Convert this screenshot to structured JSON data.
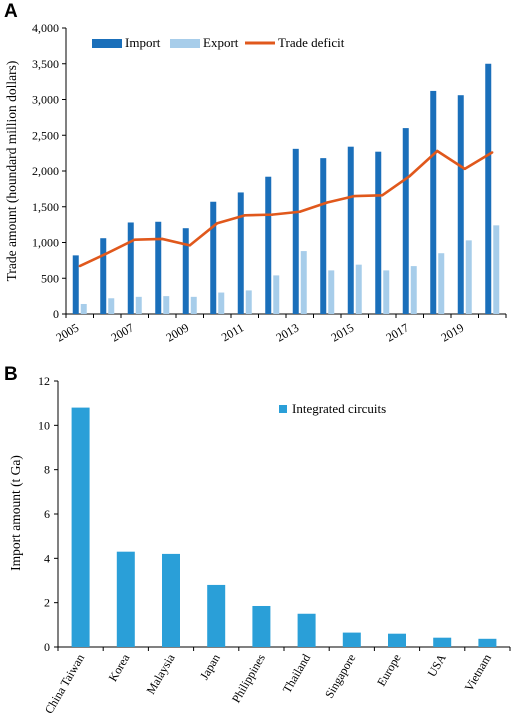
{
  "colors": {
    "import": "#1a6fba",
    "export": "#a7cdea",
    "deficit": "#e0581c",
    "ic": "#2a9fd8",
    "axis": "#000000"
  },
  "chart_data": [
    {
      "panel": "A",
      "type": "bar",
      "ylabel": "Trade amount (houndard million dollars)",
      "xlabel": "",
      "ylim": [
        0,
        4000
      ],
      "yticks": [
        0,
        500,
        1000,
        1500,
        2000,
        2500,
        3000,
        3500,
        4000
      ],
      "ytick_labels": [
        "0",
        "500",
        "1,000",
        "1,500",
        "2,000",
        "2,500",
        "3,000",
        "3,500",
        "4,000"
      ],
      "x": [
        2005,
        2006,
        2007,
        2008,
        2009,
        2010,
        2011,
        2012,
        2013,
        2014,
        2015,
        2016,
        2017,
        2018,
        2019,
        2020
      ],
      "xtick_labels": [
        "2005",
        "2007",
        "2009",
        "2011",
        "2013",
        "2015",
        "2017",
        "2019"
      ],
      "legend_position": "top",
      "grid": false,
      "series": [
        {
          "name": "Import",
          "kind": "bar",
          "values": [
            820,
            1060,
            1280,
            1290,
            1200,
            1570,
            1700,
            1920,
            2310,
            2180,
            2340,
            2270,
            2600,
            3120,
            3060,
            3500
          ]
        },
        {
          "name": "Export",
          "kind": "bar",
          "values": [
            140,
            220,
            240,
            250,
            240,
            300,
            330,
            540,
            880,
            610,
            690,
            610,
            670,
            850,
            1030,
            1240
          ]
        },
        {
          "name": "Trade deficit",
          "kind": "line",
          "values": [
            670,
            850,
            1040,
            1050,
            960,
            1270,
            1380,
            1390,
            1430,
            1560,
            1650,
            1660,
            1930,
            2280,
            2030,
            2260
          ]
        }
      ]
    },
    {
      "panel": "B",
      "type": "bar",
      "ylabel": "Import amount (t Ga)",
      "xlabel": "",
      "ylim": [
        0,
        12
      ],
      "yticks": [
        0,
        2,
        4,
        6,
        8,
        10,
        12
      ],
      "ytick_labels": [
        "0",
        "2",
        "4",
        "6",
        "8",
        "10",
        "12"
      ],
      "categories": [
        "China Taiwan",
        "Korea",
        "Malaysia",
        "Japan",
        "Philippines",
        "Thailand",
        "Singapore",
        "Europe",
        "USA",
        "Vietnam"
      ],
      "legend_position": "top-right",
      "grid": false,
      "series": [
        {
          "name": "Integrated circuits",
          "values": [
            10.8,
            4.3,
            4.2,
            2.8,
            1.85,
            1.5,
            0.65,
            0.6,
            0.42,
            0.37
          ]
        }
      ]
    }
  ]
}
